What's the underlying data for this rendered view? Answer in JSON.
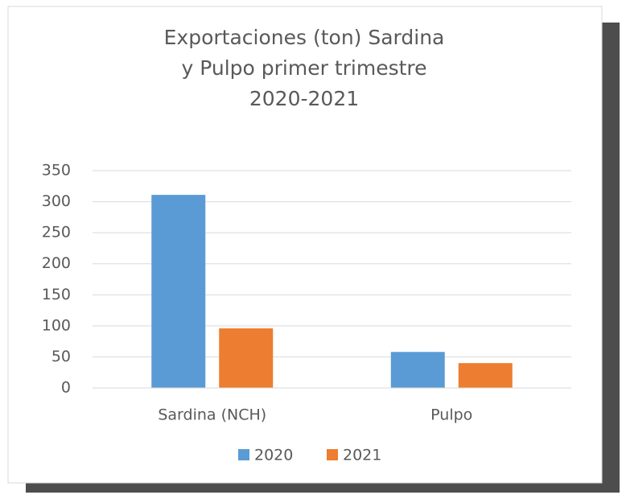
{
  "chart_data": {
    "type": "bar",
    "title": "Exportaciones (ton) Sardina y Pulpo primer trimestre 2020-2021",
    "categories": [
      "Sardina (NCH)",
      "Pulpo"
    ],
    "series": [
      {
        "name": "2020",
        "color": "#5b9bd5",
        "values": [
          311,
          58
        ]
      },
      {
        "name": "2021",
        "color": "#ed7d31",
        "values": [
          96,
          40
        ]
      }
    ],
    "ylim": [
      0,
      350
    ],
    "yticks": [
      0,
      50,
      100,
      150,
      200,
      250,
      300,
      350
    ],
    "grid": true,
    "legend": "bottom"
  }
}
